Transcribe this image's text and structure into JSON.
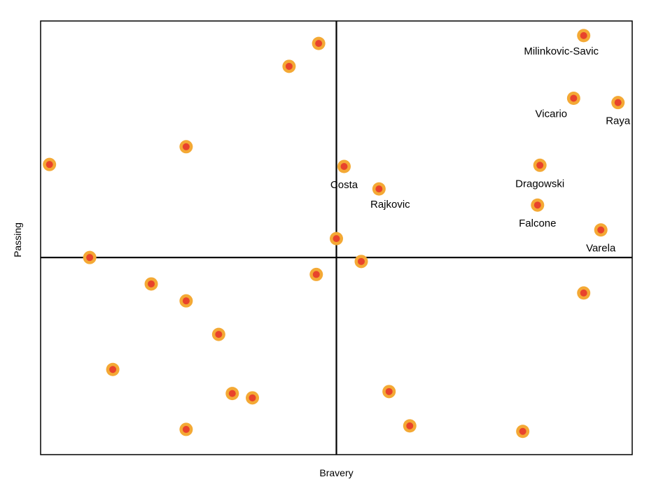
{
  "chart_data": {
    "type": "scatter",
    "title": "",
    "xlabel": "Bravery",
    "ylabel": "Passing",
    "xlim": [
      -50,
      50
    ],
    "ylim": [
      -50,
      60
    ],
    "grid": false,
    "quadrant_lines": {
      "x": 0,
      "y": 0
    },
    "colors": {
      "marker_outer": "#f4a935",
      "marker_inner": "#e8432c",
      "axis": "#000000"
    },
    "points": [
      {
        "x": 41.8,
        "y": 56.3,
        "label": "Milinkovic-Savic",
        "label_pos": "below-left"
      },
      {
        "x": 40.1,
        "y": 40.4,
        "label": "Vicario",
        "label_pos": "below-left"
      },
      {
        "x": 47.6,
        "y": 39.3,
        "label": "Raya",
        "label_pos": "below"
      },
      {
        "x": 1.3,
        "y": 23.1,
        "label": "Costa",
        "label_pos": "below"
      },
      {
        "x": 7.2,
        "y": 17.4,
        "label": "Rajkovic",
        "label_pos": "below-right"
      },
      {
        "x": 34.4,
        "y": 23.4,
        "label": "Dragowski",
        "label_pos": "below"
      },
      {
        "x": 34.0,
        "y": 13.3,
        "label": "Falcone",
        "label_pos": "below"
      },
      {
        "x": 44.7,
        "y": 7.0,
        "label": "Varela",
        "label_pos": "below"
      },
      {
        "x": -3.0,
        "y": 54.3,
        "label": ""
      },
      {
        "x": -8.0,
        "y": 48.5,
        "label": ""
      },
      {
        "x": -25.4,
        "y": 28.1,
        "label": ""
      },
      {
        "x": -48.5,
        "y": 23.6,
        "label": ""
      },
      {
        "x": 0.0,
        "y": 4.8,
        "label": ""
      },
      {
        "x": -41.7,
        "y": 0.0,
        "label": ""
      },
      {
        "x": 4.2,
        "y": -1.0,
        "label": ""
      },
      {
        "x": -31.3,
        "y": -6.7,
        "label": ""
      },
      {
        "x": -3.4,
        "y": -4.3,
        "label": ""
      },
      {
        "x": -25.4,
        "y": -11.0,
        "label": ""
      },
      {
        "x": 41.8,
        "y": -9.0,
        "label": ""
      },
      {
        "x": -19.9,
        "y": -19.5,
        "label": ""
      },
      {
        "x": -37.8,
        "y": -28.4,
        "label": ""
      },
      {
        "x": -17.6,
        "y": -34.5,
        "label": ""
      },
      {
        "x": -14.2,
        "y": -35.6,
        "label": ""
      },
      {
        "x": 8.9,
        "y": -34.0,
        "label": ""
      },
      {
        "x": -25.4,
        "y": -43.6,
        "label": ""
      },
      {
        "x": 12.4,
        "y": -42.7,
        "label": ""
      },
      {
        "x": 31.5,
        "y": -44.1,
        "label": ""
      }
    ]
  }
}
